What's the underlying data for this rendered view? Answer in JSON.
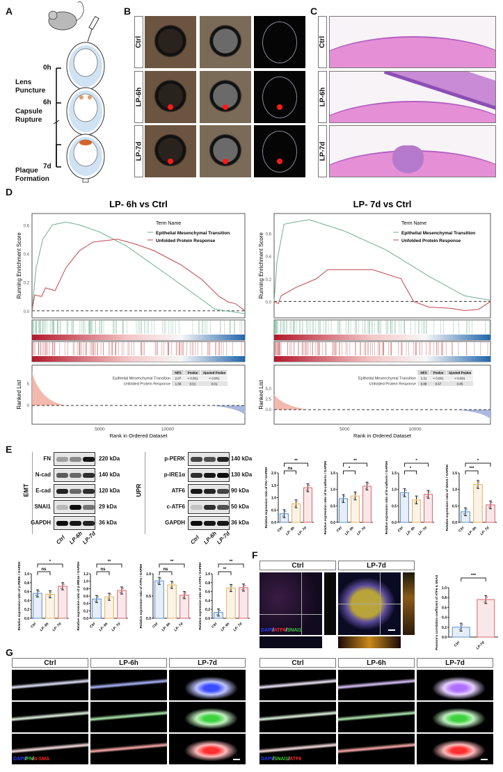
{
  "panels": {
    "A": "A",
    "B": "B",
    "C": "C",
    "D": "D",
    "E": "E",
    "F": "F",
    "G": "G"
  },
  "schematic": {
    "timepoints": [
      "0h",
      "6h",
      "7d"
    ],
    "stages": [
      "Lens Puncture",
      "Capsule Rupture",
      "Plaque Formation"
    ]
  },
  "photos": {
    "rows": [
      "Ctrl",
      "LP-6h",
      "LP-7d"
    ]
  },
  "histology": {
    "rows": [
      "Ctrl",
      "LP-6h",
      "LP-7d"
    ]
  },
  "gsea": [
    {
      "title": "LP- 6h vs Ctrl",
      "ylabel": "Running Enrichment Score",
      "legend_title": "Term Name",
      "terms": [
        "Epithelial Mesenchymal Transition",
        "Unfolded Protein Response"
      ],
      "ranked_label": "Ranked List",
      "xlabel": "Rank in Ordered Dataset",
      "yticks": [
        "0.0",
        "0.2",
        "0.4",
        "0.6"
      ],
      "ranked_ticks": [
        "0",
        "5"
      ],
      "xticks": [
        "5000",
        "10000"
      ],
      "table": {
        "headers": [
          "NES",
          "Pvalue",
          "Ajusted Pvalue"
        ],
        "rows": [
          [
            "Epithelial Mesenchymal Transition",
            "2.07",
            "< 0.001",
            "< 0.001"
          ],
          [
            "Unfolded Protein Response",
            "1.58",
            "0.01",
            "0.01"
          ]
        ]
      }
    },
    {
      "title": "LP- 7d vs Ctrl",
      "ylabel": "Running Enrichment Score",
      "legend_title": "Term Name",
      "terms": [
        "Epithelial Mesenchymal Transition",
        "Unfolded Protein Response"
      ],
      "ranked_label": "Ranked List",
      "xlabel": "Rank in Ordered Dataset",
      "yticks": [
        "0.0",
        "0.2",
        "0.4",
        "0.6"
      ],
      "ranked_ticks": [
        "0.0",
        "2.5",
        "5.0"
      ],
      "xticks": [
        "5000",
        "10000"
      ],
      "table": {
        "headers": [
          "NES",
          "Pvalue",
          "Ajusted Pvalue"
        ],
        "rows": [
          [
            "Epithelial Mesenchymal Transition",
            "2.31",
            "< 0.001",
            "< 0.001"
          ],
          [
            "Unfolded Protein Response",
            "0.88",
            "0.67",
            "0.85"
          ]
        ]
      }
    }
  ],
  "blots": {
    "lanes": [
      "Ctrl",
      "LP-6h",
      "LP-7d"
    ],
    "emt": {
      "group": "EMT",
      "bands": [
        {
          "name": "FN",
          "kda": "220 kDa"
        },
        {
          "name": "N-cad",
          "kda": "140 kDa"
        },
        {
          "name": "E-cad",
          "kda": "120 kDa"
        },
        {
          "name": "SNAI1",
          "kda": "29 kDa"
        },
        {
          "name": "GAPDH",
          "kda": "36 kDa"
        }
      ]
    },
    "upr": {
      "group": "UPR",
      "bands": [
        {
          "name": "p-PERK",
          "kda": "140 kDa"
        },
        {
          "name": "p-IRE1α",
          "kda": "130 kDa"
        },
        {
          "name": "ATF6",
          "kda": "90 kDa"
        },
        {
          "name": "c-ATF6",
          "kda": "50 kDa"
        },
        {
          "name": "GAPDH",
          "kda": "36 kDa"
        }
      ]
    }
  },
  "colocalization": {
    "headers": [
      "Ctrl",
      "LP-7d"
    ],
    "channels": [
      {
        "text": "DAPI",
        "color": "#2a3cff"
      },
      {
        "text": "/",
        "color": "#ffffff"
      },
      {
        "text": "ATF6",
        "color": "#ff2a2a"
      },
      {
        "text": "/",
        "color": "#ffffff"
      },
      {
        "text": "SNAI1",
        "color": "#3cd23c"
      }
    ]
  },
  "immunofluorescence": [
    {
      "headers": [
        "Ctrl",
        "LP-6h",
        "LP-7d"
      ],
      "channels": [
        {
          "text": "DAPI",
          "color": "#2a3cff"
        },
        {
          "text": "/",
          "color": "#ffffff"
        },
        {
          "text": "FN",
          "color": "#3cd23c"
        },
        {
          "text": "/",
          "color": "#ffffff"
        },
        {
          "text": "α-SMA",
          "color": "#ff2a2a"
        }
      ]
    },
    {
      "headers": [
        "Ctrl",
        "LP-6h",
        "LP-7d"
      ],
      "channels": [
        {
          "text": "DAPI",
          "color": "#2a3cff"
        },
        {
          "text": "/",
          "color": "#ffffff"
        },
        {
          "text": "SNAI1",
          "color": "#3cd23c"
        },
        {
          "text": "/",
          "color": "#ffffff"
        },
        {
          "text": "ATF6",
          "color": "#ff2a2a"
        }
      ]
    }
  ],
  "colors": {
    "Ctrl": "#5b8fc7",
    "LP-6h": "#e6b15c",
    "LP-7d": "#d9636c",
    "emt": "#6fae8f",
    "upr": "#c0474d"
  },
  "chart_data": [
    {
      "type": "line",
      "title": "LP- 6h vs Ctrl",
      "xlabel": "Rank in Ordered Dataset",
      "ylabel": "Running Enrichment Score",
      "xlim": [
        0,
        15700
      ],
      "ylim": [
        -0.03,
        0.66
      ],
      "legend": "top-right",
      "series": [
        {
          "name": "Epithelial Mesenchymal Transition",
          "x": [
            0,
            300,
            800,
            1500,
            2500,
            3500,
            5000,
            7000,
            10000,
            12500,
            13500,
            15700
          ],
          "y": [
            0,
            0.3,
            0.5,
            0.6,
            0.62,
            0.6,
            0.55,
            0.45,
            0.25,
            0.08,
            0.01,
            -0.02
          ]
        },
        {
          "name": "Unfolded Protein Response",
          "x": [
            0,
            200,
            700,
            1000,
            1700,
            2500,
            3500,
            4500,
            6300,
            7500,
            9000,
            11000,
            12500,
            13800,
            14500,
            15000,
            15700
          ],
          "y": [
            0,
            0.11,
            0.1,
            0.16,
            0.14,
            0.3,
            0.42,
            0.48,
            0.5,
            0.47,
            0.42,
            0.32,
            0.22,
            0.1,
            0.06,
            0.05,
            0
          ]
        }
      ]
    },
    {
      "type": "line",
      "title": "LP- 7d vs Ctrl",
      "xlabel": "Rank in Ordered Dataset",
      "ylabel": "Running Enrichment Score",
      "xlim": [
        0,
        15350
      ],
      "ylim": [
        -0.12,
        0.75
      ],
      "legend": "top-right",
      "series": [
        {
          "name": "Epithelial Mesenchymal Transition",
          "x": [
            0,
            200,
            700,
            1500,
            2500,
            5000,
            8000,
            11000,
            13500,
            15350
          ],
          "y": [
            0,
            0.35,
            0.68,
            0.7,
            0.72,
            0.62,
            0.45,
            0.22,
            0.05,
            0.01
          ]
        },
        {
          "name": "Unfolded Protein Response",
          "x": [
            0,
            300,
            500,
            1500,
            3000,
            3800,
            5500,
            7000,
            9000,
            9900,
            11000,
            12500,
            13500,
            14500,
            15350
          ],
          "y": [
            0,
            -0.02,
            0.05,
            0.12,
            0.2,
            0.28,
            0.28,
            0.28,
            0.2,
            0.0,
            -0.05,
            -0.06,
            -0.08,
            -0.07,
            0
          ]
        }
      ]
    },
    {
      "type": "bar",
      "ylabel": "Relative expression ratio of FN / GAPDH",
      "categories": [
        "Ctrl",
        "LP- 6h",
        "LP- 7d"
      ],
      "values": [
        0.35,
        0.75,
        1.4
      ],
      "ylim": [
        0,
        2.0
      ],
      "yticks": [
        "0.0",
        "0.5",
        "1.0",
        "1.5",
        "2.0"
      ],
      "significance": [
        {
          "pair": [
            0,
            1
          ],
          "label": "ns"
        },
        {
          "pair": [
            0,
            2
          ],
          "label": "**"
        }
      ]
    },
    {
      "type": "bar",
      "ylabel": "Relative expression ratio of N-cadherin / GAPDH",
      "categories": [
        "Ctrl",
        "LP- 6h",
        "LP- 7d"
      ],
      "values": [
        0.72,
        0.8,
        1.1
      ],
      "ylim": [
        0,
        1.5
      ],
      "yticks": [
        "0.0",
        "0.5",
        "1.0",
        "1.5"
      ],
      "significance": [
        {
          "pair": [
            0,
            1
          ],
          "label": "*"
        },
        {
          "pair": [
            0,
            2
          ],
          "label": "**"
        }
      ]
    },
    {
      "type": "bar",
      "ylabel": "Relative expression ratio of E-cadherin / GAPDH",
      "categories": [
        "Ctrl",
        "LP- 6h",
        "LP- 7d"
      ],
      "values": [
        0.9,
        0.68,
        0.85
      ],
      "ylim": [
        0,
        1.5
      ],
      "yticks": [
        "0.0",
        "0.5",
        "1.0",
        "1.5"
      ],
      "significance": [
        {
          "pair": [
            0,
            1
          ],
          "label": "*"
        },
        {
          "pair": [
            0,
            2
          ],
          "label": "*"
        }
      ]
    },
    {
      "type": "bar",
      "ylabel": "Relative expression ratio of SNAI1 / GAPDH",
      "categories": [
        "Ctrl",
        "LP- 6h",
        "LP- 7d"
      ],
      "values": [
        0.32,
        1.15,
        0.53
      ],
      "ylim": [
        0,
        1.5
      ],
      "yticks": [
        "0.0",
        "0.5",
        "1.0",
        "1.5"
      ],
      "significance": [
        {
          "pair": [
            0,
            1
          ],
          "label": "***"
        },
        {
          "pair": [
            0,
            2
          ],
          "label": "*"
        }
      ]
    },
    {
      "type": "bar",
      "ylabel": "Relative expression ratio of p-PERK / GAPDH",
      "categories": [
        "Ctrl",
        "LP- 6h",
        "LP- 7d"
      ],
      "values": [
        0.56,
        0.54,
        0.72
      ],
      "ylim": [
        0,
        1.0
      ],
      "yticks": [
        "0.0",
        "0.2",
        "0.4",
        "0.6",
        "0.8",
        "1.0"
      ],
      "significance": [
        {
          "pair": [
            0,
            1
          ],
          "label": "ns"
        },
        {
          "pair": [
            0,
            2
          ],
          "label": "*"
        }
      ]
    },
    {
      "type": "bar",
      "ylabel": "Relative expression ratio of p-IRE1α / GAPDH",
      "categories": [
        "Ctrl",
        "LP- 6h",
        "LP- 7d"
      ],
      "values": [
        0.52,
        0.58,
        0.75
      ],
      "ylim": [
        0,
        1.2
      ],
      "yticks": [
        "0.0",
        "0.2",
        "0.4",
        "0.6",
        "0.8",
        "1.0",
        "1.2"
      ],
      "significance": [
        {
          "pair": [
            0,
            1
          ],
          "label": "ns"
        },
        {
          "pair": [
            0,
            2
          ],
          "label": "**"
        }
      ]
    },
    {
      "type": "bar",
      "ylabel": "Relative expression ratio of ATF6 / GAPDH",
      "categories": [
        "Ctrl",
        "LP- 6h",
        "LP- 7d"
      ],
      "values": [
        0.84,
        0.75,
        0.52
      ],
      "ylim": [
        0,
        1.0
      ],
      "yticks": [
        "0.0",
        "0.5",
        "1.0"
      ],
      "significance": [
        {
          "pair": [
            0,
            1
          ],
          "label": "ns"
        },
        {
          "pair": [
            0,
            2
          ],
          "label": "**"
        }
      ]
    },
    {
      "type": "bar",
      "ylabel": "Relative expression ratio of c-ATF6 / GAPDH",
      "categories": [
        "Ctrl",
        "LP- 6h",
        "LP- 7d"
      ],
      "values": [
        0.13,
        0.68,
        0.69
      ],
      "ylim": [
        0,
        1.0
      ],
      "yticks": [
        "0.0",
        "0.2",
        "0.4",
        "0.6",
        "0.8",
        "1.0"
      ],
      "significance": [
        {
          "pair": [
            0,
            1
          ],
          "label": "**"
        },
        {
          "pair": [
            0,
            2
          ],
          "label": "**"
        }
      ]
    },
    {
      "type": "bar",
      "ylabel": "Pearson's correlation coefficient of ATF6 & SNAI1",
      "categories": [
        "Ctrl",
        "LP-7d"
      ],
      "values": [
        0.2,
        0.76
      ],
      "ylim": [
        0,
        1.0
      ],
      "yticks": [
        "0.0",
        "0.2",
        "0.4",
        "0.6",
        "0.8",
        "1.0"
      ],
      "significance": [
        {
          "pair": [
            0,
            1
          ],
          "label": "***"
        }
      ]
    }
  ]
}
